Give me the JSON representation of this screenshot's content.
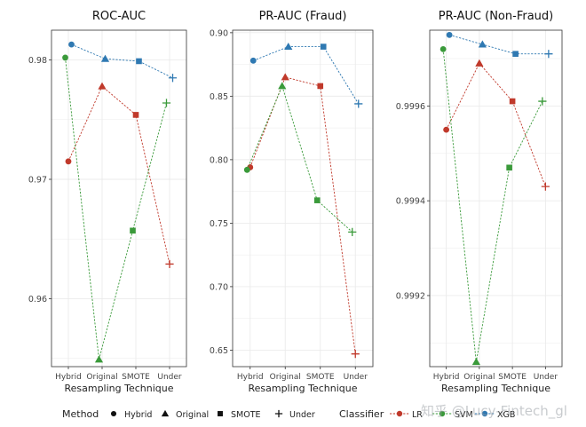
{
  "chart_data": [
    {
      "type": "line",
      "title": "ROC-AUC",
      "xlabel": "Resampling Technique",
      "ylabel": "",
      "categories": [
        "Hybrid",
        "Original",
        "SMOTE",
        "Under"
      ],
      "yticks": [
        0.96,
        0.97,
        0.98
      ],
      "ylim": [
        0.9543,
        0.9825
      ],
      "series": [
        {
          "name": "LR",
          "values": [
            0.9715,
            0.9778,
            0.9754,
            0.9629
          ]
        },
        {
          "name": "SVM",
          "values": [
            0.9802,
            0.9549,
            0.9657,
            0.9764
          ]
        },
        {
          "name": "XGB",
          "values": [
            0.9813,
            0.9801,
            0.9799,
            0.9785
          ]
        }
      ]
    },
    {
      "type": "line",
      "title": "PR-AUC (Fraud)",
      "xlabel": "Resampling Technique",
      "ylabel": "",
      "categories": [
        "Hybrid",
        "Original",
        "SMOTE",
        "Under"
      ],
      "yticks": [
        0.65,
        0.7,
        0.75,
        0.8,
        0.85,
        0.9
      ],
      "ylim": [
        0.637,
        0.902
      ],
      "series": [
        {
          "name": "LR",
          "values": [
            0.794,
            0.865,
            0.858,
            0.647
          ]
        },
        {
          "name": "SVM",
          "values": [
            0.792,
            0.858,
            0.768,
            0.743
          ]
        },
        {
          "name": "XGB",
          "values": [
            0.878,
            0.889,
            0.889,
            0.844
          ]
        }
      ]
    },
    {
      "type": "line",
      "title": "PR-AUC (Non-Fraud)",
      "xlabel": "Resampling Technique",
      "ylabel": "",
      "categories": [
        "Hybrid",
        "Original",
        "SMOTE",
        "Under"
      ],
      "yticks": [
        0.9992,
        0.9994,
        0.9996
      ],
      "ylim": [
        0.99905,
        0.99976
      ],
      "series": [
        {
          "name": "LR",
          "values": [
            0.99955,
            0.99969,
            0.99961,
            0.99943
          ]
        },
        {
          "name": "SVM",
          "values": [
            0.99972,
            0.99906,
            0.99947,
            0.99961
          ]
        },
        {
          "name": "XGB",
          "values": [
            0.99975,
            0.99973,
            0.99971,
            0.99971
          ]
        }
      ]
    }
  ],
  "legend": {
    "method_title": "Method",
    "methods": [
      "Hybrid",
      "Original",
      "SMOTE",
      "Under"
    ],
    "classifier_title": "Classifier",
    "classifiers": [
      "LR",
      "SVM",
      "XGB"
    ],
    "colors": {
      "LR": "#c0392b",
      "SVM": "#3a9a3a",
      "XGB": "#2f79b2"
    }
  },
  "watermark": "知乎 @Lucy-Fintech_gl"
}
